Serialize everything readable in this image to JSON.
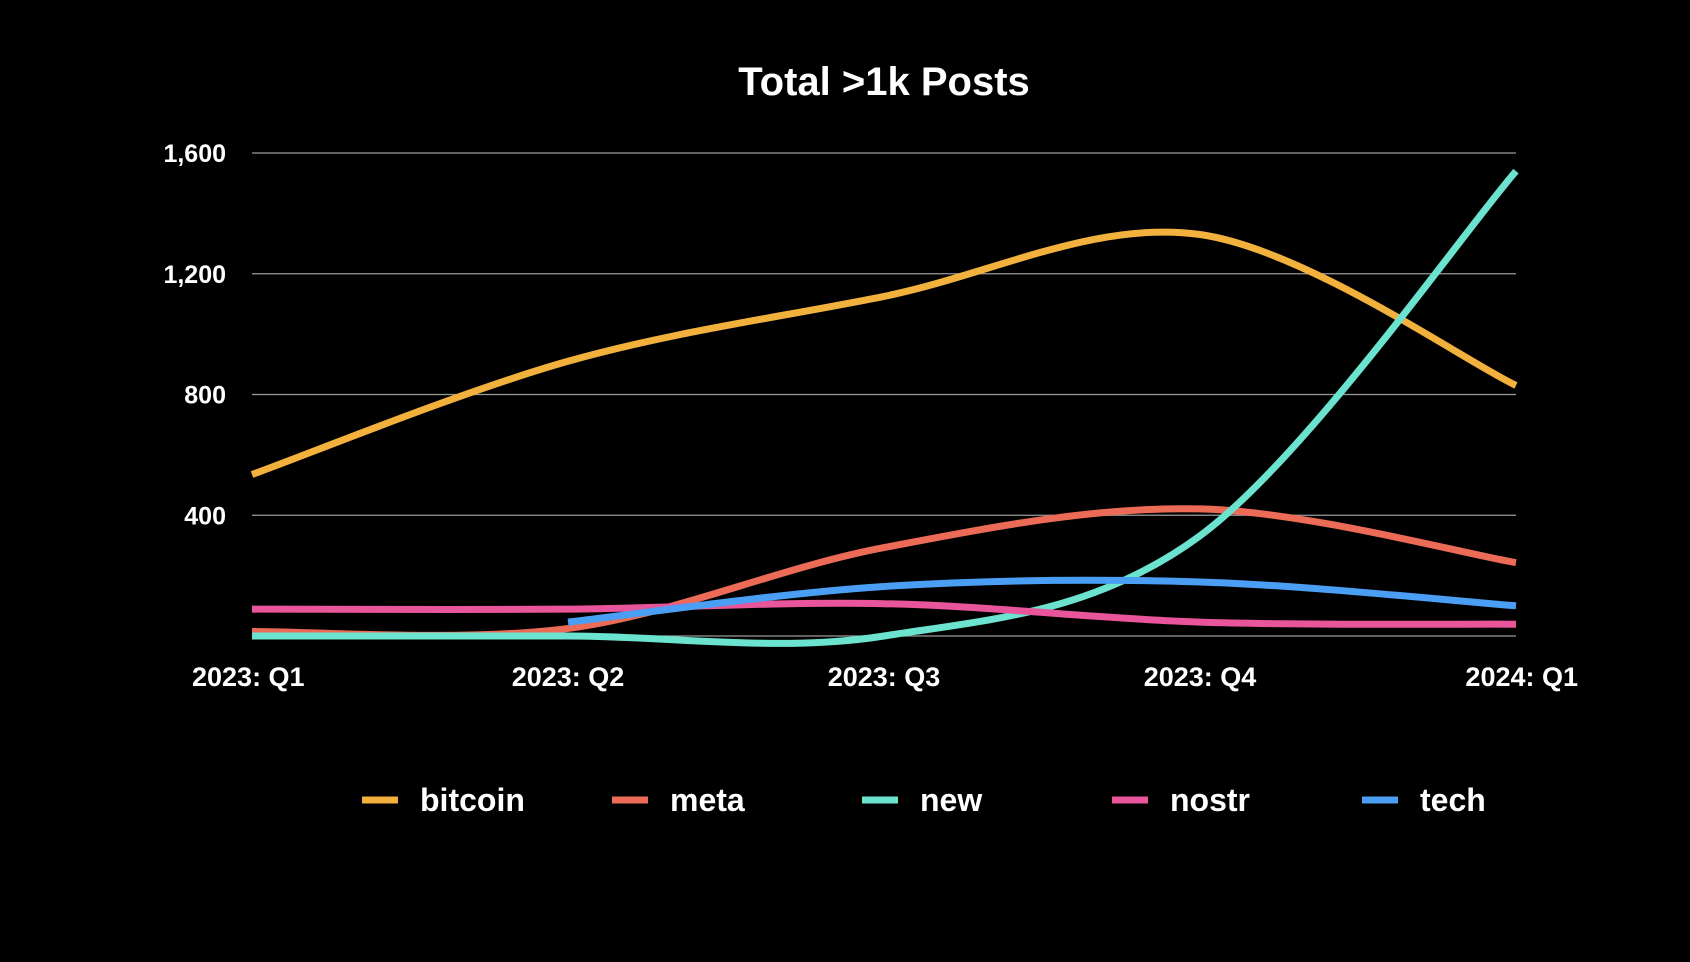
{
  "chart_data": {
    "type": "line",
    "title": "Total >1k Posts",
    "xlabel": "",
    "ylabel": "",
    "categories": [
      "2023: Q1",
      "2023: Q2",
      "2023: Q3",
      "2023: Q4",
      "2024: Q1"
    ],
    "ylim": [
      0,
      1600
    ],
    "yticks": [
      400,
      800,
      1200,
      1600
    ],
    "ytick_labels": [
      "400",
      "800",
      "1,200",
      "1,600"
    ],
    "grid": true,
    "legend_position": "bottom",
    "smooth": true,
    "series": [
      {
        "name": "bitcoin",
        "color": "#F2B03D",
        "values": [
          535,
          910,
          1125,
          1330,
          830
        ]
      },
      {
        "name": "meta",
        "color": "#EC6B56",
        "values": [
          15,
          25,
          293,
          421,
          243
        ]
      },
      {
        "name": "new",
        "color": "#6BE3CE",
        "values": [
          0,
          0,
          0,
          332,
          1540
        ]
      },
      {
        "name": "nostr",
        "color": "#E8559A",
        "values": [
          89,
          89,
          107,
          46,
          39
        ]
      },
      {
        "name": "tech",
        "color": "#4A9FF5",
        "values": [
          null,
          46,
          164,
          179,
          100
        ]
      }
    ]
  }
}
